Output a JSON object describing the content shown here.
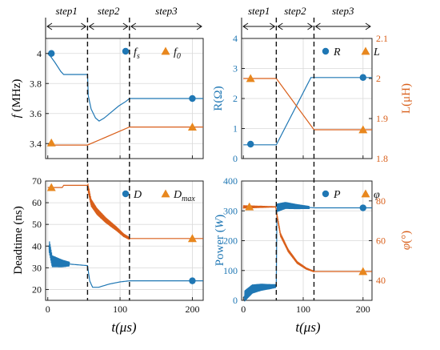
{
  "colors": {
    "blue": "#1f77b4",
    "orange": "#d95f1a",
    "legend_marker_orange": "#e8871e",
    "dashed": "#111111"
  },
  "chart_data": [
    {
      "id": "frequency",
      "type": "line",
      "steps": [
        "step1",
        "step2",
        "step3"
      ],
      "step_bounds_us": [
        0,
        55,
        113,
        215
      ],
      "ylabel_pre": "f",
      "ylabel_post": " (MHz)",
      "xlim": [
        -3,
        215
      ],
      "ylim": [
        3.3,
        4.1
      ],
      "yticks": [
        "3.4",
        "3.6",
        "3.8",
        "4"
      ],
      "xticks": [],
      "grid": true,
      "legend": [
        {
          "base": "f",
          "sub": "s",
          "marker": "circle",
          "color": "#1f77b4"
        },
        {
          "base": "f",
          "sub": "0",
          "marker": "triangle",
          "color": "#e8871e"
        }
      ],
      "series": [
        {
          "name": "f_s",
          "color": "#1f77b4",
          "axis": "left",
          "points": [
            [
              0,
              4.0
            ],
            [
              4,
              3.98
            ],
            [
              10,
              3.94
            ],
            [
              18,
              3.88
            ],
            [
              22,
              3.86
            ],
            [
              55,
              3.86
            ],
            [
              55,
              3.86
            ],
            [
              56,
              3.72
            ],
            [
              60,
              3.63
            ],
            [
              66,
              3.57
            ],
            [
              71,
              3.55
            ],
            [
              78,
              3.57
            ],
            [
              88,
              3.61
            ],
            [
              98,
              3.65
            ],
            [
              108,
              3.68
            ],
            [
              113,
              3.7
            ],
            [
              215,
              3.7
            ]
          ],
          "markers": [
            [
              5,
              4.0
            ],
            [
              200,
              3.7
            ]
          ]
        },
        {
          "name": "f_0",
          "color": "#d95f1a",
          "axis": "left",
          "points": [
            [
              0,
              3.39
            ],
            [
              55,
              3.39
            ],
            [
              113,
              3.51
            ],
            [
              215,
              3.51
            ]
          ],
          "markers": [
            [
              5,
              3.405
            ],
            [
              200,
              3.51
            ]
          ]
        }
      ]
    },
    {
      "id": "resistance-inductance",
      "type": "line",
      "steps": [
        "step1",
        "step2",
        "step3"
      ],
      "step_bounds_us": [
        0,
        55,
        118,
        215
      ],
      "ylabel": "R(Ω)",
      "ylabel_right": "L(μH)",
      "xlim": [
        -3,
        215
      ],
      "ylim": [
        0,
        4
      ],
      "ylim_right": [
        1.8,
        2.1
      ],
      "yticks": [
        "0",
        "1",
        "2",
        "3",
        "4"
      ],
      "yticks_right": [
        "1.8",
        "1.9",
        "2",
        "2.1"
      ],
      "xticks": [],
      "grid": true,
      "legend": [
        {
          "base": "R",
          "sub": "",
          "marker": "circle",
          "color": "#1f77b4"
        },
        {
          "base": "L",
          "sub": "",
          "marker": "triangle",
          "color": "#e8871e"
        }
      ],
      "series": [
        {
          "name": "R",
          "color": "#1f77b4",
          "axis": "left",
          "points": [
            [
              0,
              0.46
            ],
            [
              55,
              0.46
            ],
            [
              113,
              2.7
            ],
            [
              215,
              2.7
            ]
          ],
          "markers": [
            [
              12,
              0.48
            ],
            [
              200,
              2.7
            ]
          ]
        },
        {
          "name": "L",
          "color": "#d95f1a",
          "axis": "right",
          "points": [
            [
              0,
              2.0
            ],
            [
              55,
              2.0
            ],
            [
              118,
              1.872
            ],
            [
              215,
              1.872
            ]
          ],
          "markers": [
            [
              12,
              2.0
            ],
            [
              200,
              1.872
            ]
          ]
        }
      ]
    },
    {
      "id": "deadtime",
      "type": "line",
      "ylabel": "Deadtime (ns)",
      "xlabel_pre": "t",
      "xlabel_post": "(μs)",
      "xlim": [
        -3,
        215
      ],
      "ylim": [
        15,
        70
      ],
      "yticks": [
        "20",
        "30",
        "40",
        "50",
        "60",
        "70"
      ],
      "xticks": [
        "0",
        "100",
        "200"
      ],
      "grid": true,
      "legend": [
        {
          "base": "D",
          "sub": "",
          "marker": "circle",
          "color": "#1f77b4"
        },
        {
          "base": "D",
          "sub": "max",
          "marker": "triangle",
          "color": "#e8871e"
        }
      ],
      "series": [
        {
          "name": "D",
          "color": "#1f77b4",
          "axis": "left",
          "points": [
            [
              0,
              40
            ],
            [
              2,
              40
            ],
            [
              6,
              33
            ],
            [
              20,
              32
            ],
            [
              55,
              31
            ],
            [
              55,
              31
            ],
            [
              58,
              24
            ],
            [
              62,
              21
            ],
            [
              70,
              21
            ],
            [
              85,
              22.5
            ],
            [
              100,
              23.5
            ],
            [
              113,
              24
            ],
            [
              215,
              24
            ]
          ],
          "oscillation": {
            "from": 2,
            "to": 30,
            "amplitude": 3.0
          },
          "markers": [
            [
              200,
              24
            ]
          ]
        },
        {
          "name": "D_max",
          "color": "#d95f1a",
          "axis": "left",
          "points": [
            [
              0,
              67
            ],
            [
              20,
              67
            ],
            [
              22,
              68
            ],
            [
              30,
              68
            ],
            [
              55,
              68
            ],
            [
              60,
              60
            ],
            [
              68,
              56
            ],
            [
              80,
              52
            ],
            [
              95,
              48
            ],
            [
              105,
              45
            ],
            [
              113,
              43.5
            ],
            [
              215,
              43.5
            ]
          ],
          "oscillation": {
            "from": 55,
            "to": 113,
            "amplitude": 1.8
          },
          "markers": [
            [
              5,
              67
            ],
            [
              200,
              43.5
            ]
          ]
        }
      ]
    },
    {
      "id": "power-phase",
      "type": "line",
      "ylabel_pre": "Power (",
      "ylabel_mid": "W",
      "ylabel_post": ")",
      "ylabel_right_pre": "φ",
      "ylabel_right_post": "(°)",
      "xlabel_pre": "t",
      "xlabel_post": "(μs)",
      "xlim": [
        -3,
        215
      ],
      "ylim": [
        0,
        400
      ],
      "ylim_right": [
        30,
        90
      ],
      "yticks": [
        "0",
        "100",
        "200",
        "300",
        "400"
      ],
      "yticks_right": [
        "40",
        "60",
        "80"
      ],
      "xticks": [
        "0",
        "100",
        "200"
      ],
      "grid": true,
      "legend": [
        {
          "base": "P",
          "sub": "",
          "marker": "circle",
          "color": "#1f77b4"
        },
        {
          "base": "φ",
          "sub": "",
          "marker": "triangle",
          "color": "#e8871e"
        }
      ],
      "series": [
        {
          "name": "P",
          "color": "#1f77b4",
          "axis": "left",
          "points": [
            [
              0,
              10
            ],
            [
              5,
              20
            ],
            [
              15,
              38
            ],
            [
              30,
              44
            ],
            [
              45,
              46
            ],
            [
              54,
              48
            ],
            [
              55,
              48
            ],
            [
              56,
              310
            ],
            [
              70,
              318
            ],
            [
              90,
              314
            ],
            [
              120,
              310
            ],
            [
              215,
              310
            ]
          ],
          "oscillation": {
            "from": 2,
            "to": 54,
            "amplitude": 18
          },
          "oscillation2": {
            "from": 56,
            "to": 110,
            "amplitude": 14
          },
          "markers": [
            [
              200,
              310
            ]
          ]
        },
        {
          "name": "φ",
          "color": "#d95f1a",
          "axis": "right",
          "points": [
            [
              0,
              77
            ],
            [
              54,
              77
            ],
            [
              56,
              73
            ],
            [
              62,
              63
            ],
            [
              75,
              55
            ],
            [
              90,
              49
            ],
            [
              105,
              46
            ],
            [
              118,
              44.5
            ],
            [
              215,
              44.5
            ]
          ],
          "oscillation": {
            "from": 0,
            "to": 54,
            "amplitude": 0.8
          },
          "oscillation2": {
            "from": 56,
            "to": 118,
            "amplitude": 1.0
          },
          "markers": [
            [
              10,
              77
            ],
            [
              200,
              44.5
            ]
          ]
        }
      ]
    }
  ]
}
